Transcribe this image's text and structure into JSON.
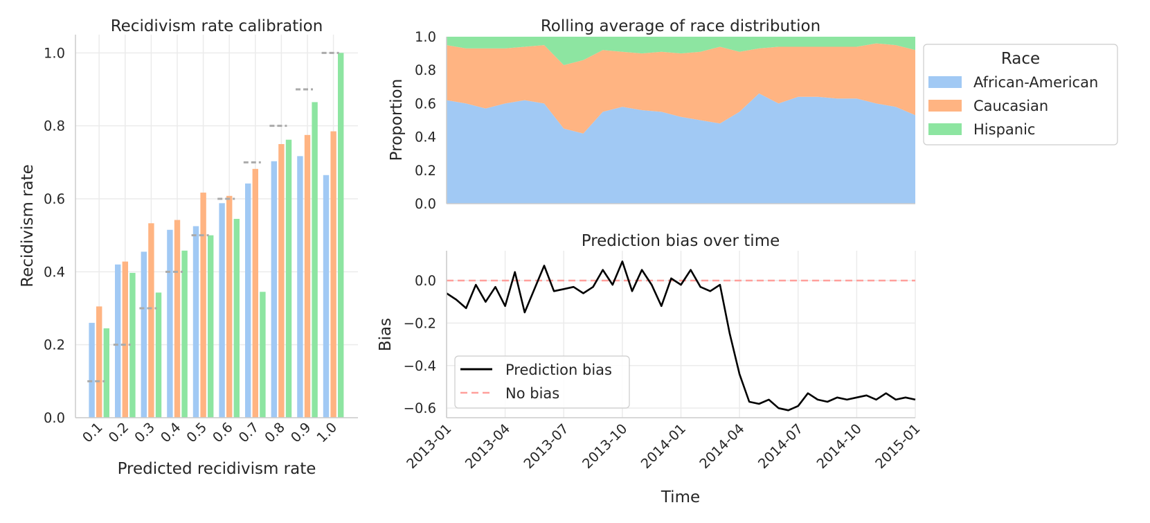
{
  "colors": {
    "african_american": "#a1c9f4",
    "caucasian": "#ffb482",
    "hispanic": "#8de5a1",
    "bias_line": "#000000",
    "no_bias_line": "#ff9f9b",
    "ideal_dash": "#aaaaaa",
    "grid": "#ebebeb",
    "axis": "#cccccc"
  },
  "chart_data": [
    {
      "type": "bar",
      "title": "Recidivism rate calibration",
      "xlabel": "Predicted recidivism rate",
      "ylabel": "Recidivism rate",
      "ylim": [
        0,
        1.05
      ],
      "yticks": [
        0.0,
        0.2,
        0.4,
        0.6,
        0.8,
        1.0
      ],
      "ytick_labels": [
        "0.0",
        "0.2",
        "0.4",
        "0.6",
        "0.8",
        "1.0"
      ],
      "categories": [
        "0.1",
        "0.2",
        "0.3",
        "0.4",
        "0.5",
        "0.6",
        "0.7",
        "0.8",
        "0.9",
        "1.0"
      ],
      "series": [
        {
          "name": "African-American",
          "values": [
            0.26,
            0.42,
            0.455,
            0.515,
            0.525,
            0.588,
            0.642,
            0.703,
            0.717,
            0.665
          ]
        },
        {
          "name": "Caucasian",
          "values": [
            0.305,
            0.428,
            0.533,
            0.542,
            0.617,
            0.608,
            0.682,
            0.75,
            0.775,
            0.785
          ]
        },
        {
          "name": "Hispanic",
          "values": [
            0.245,
            0.397,
            0.343,
            0.458,
            0.5,
            0.545,
            0.345,
            0.762,
            0.865,
            1.0
          ]
        }
      ],
      "ideal_values": [
        0.1,
        0.2,
        0.3,
        0.4,
        0.5,
        0.6,
        0.7,
        0.8,
        0.9,
        1.0
      ]
    },
    {
      "type": "area",
      "title": "Rolling average of race distribution",
      "ylabel": "Proportion",
      "ylim": [
        0,
        1.0
      ],
      "yticks": [
        0.0,
        0.2,
        0.4,
        0.6,
        0.8,
        1.0
      ],
      "ytick_labels": [
        "0.0",
        "0.2",
        "0.4",
        "0.6",
        "0.8",
        "1.0"
      ],
      "x_range": [
        "2013-01",
        "2015-01"
      ],
      "x_months": [
        0,
        1,
        2,
        3,
        4,
        5,
        6,
        7,
        8,
        9,
        10,
        11,
        12,
        13,
        14,
        15,
        16,
        17,
        18,
        19,
        20,
        21,
        22,
        23,
        24
      ],
      "series": [
        {
          "name": "African-American",
          "values": [
            0.62,
            0.6,
            0.57,
            0.6,
            0.62,
            0.6,
            0.45,
            0.42,
            0.55,
            0.58,
            0.56,
            0.55,
            0.52,
            0.5,
            0.48,
            0.55,
            0.66,
            0.6,
            0.64,
            0.64,
            0.63,
            0.63,
            0.6,
            0.58,
            0.53
          ]
        },
        {
          "name": "Caucasian",
          "values": [
            0.33,
            0.33,
            0.36,
            0.33,
            0.32,
            0.35,
            0.38,
            0.44,
            0.37,
            0.33,
            0.34,
            0.36,
            0.38,
            0.41,
            0.46,
            0.36,
            0.27,
            0.34,
            0.3,
            0.3,
            0.31,
            0.31,
            0.36,
            0.37,
            0.39
          ]
        },
        {
          "name": "Hispanic",
          "values": [
            0.05,
            0.07,
            0.07,
            0.07,
            0.06,
            0.05,
            0.17,
            0.14,
            0.08,
            0.09,
            0.1,
            0.09,
            0.1,
            0.09,
            0.06,
            0.09,
            0.07,
            0.06,
            0.06,
            0.06,
            0.06,
            0.06,
            0.04,
            0.05,
            0.08
          ]
        }
      ],
      "legend": {
        "title": "Race",
        "entries": [
          "African-American",
          "Caucasian",
          "Hispanic"
        ],
        "position": "outside-right"
      }
    },
    {
      "type": "line",
      "title": "Prediction bias over time",
      "xlabel": "Time",
      "ylabel": "Bias",
      "ylim": [
        -0.645,
        0.14
      ],
      "yticks": [
        0.0,
        -0.2,
        -0.4,
        -0.6
      ],
      "ytick_labels": [
        "0.0",
        "−0.2",
        "−0.4",
        "−0.6"
      ],
      "x_range_months": [
        0,
        24
      ],
      "xticks_months": [
        0,
        3,
        6,
        9,
        12,
        15,
        18,
        21,
        24
      ],
      "xtick_labels": [
        "2013-01",
        "2013-04",
        "2013-07",
        "2013-10",
        "2014-01",
        "2014-04",
        "2014-07",
        "2014-10",
        "2015-01"
      ],
      "series": [
        {
          "name": "Prediction bias",
          "x": [
            0,
            0.5,
            1,
            1.5,
            2,
            2.5,
            3,
            3.5,
            4,
            4.5,
            5,
            5.5,
            6,
            6.5,
            7,
            7.5,
            8,
            8.5,
            9,
            9.5,
            10,
            10.5,
            11,
            11.5,
            12,
            12.5,
            13,
            13.5,
            14,
            14.5,
            15,
            15.5,
            16,
            16.5,
            17,
            17.5,
            18,
            18.5,
            19,
            19.5,
            20,
            20.5,
            21,
            21.5,
            22,
            22.5,
            23,
            23.5,
            24
          ],
          "values": [
            -0.06,
            -0.09,
            -0.13,
            -0.02,
            -0.1,
            -0.03,
            -0.12,
            0.04,
            -0.15,
            -0.04,
            0.07,
            -0.05,
            -0.04,
            -0.03,
            -0.06,
            -0.03,
            0.05,
            -0.02,
            0.09,
            -0.05,
            0.05,
            -0.02,
            -0.12,
            0.01,
            -0.02,
            0.05,
            -0.03,
            -0.05,
            -0.02,
            -0.25,
            -0.44,
            -0.57,
            -0.58,
            -0.56,
            -0.6,
            -0.61,
            -0.59,
            -0.53,
            -0.56,
            -0.57,
            -0.55,
            -0.56,
            -0.55,
            -0.54,
            -0.56,
            -0.53,
            -0.56,
            -0.55,
            -0.56
          ]
        },
        {
          "name": "No bias",
          "value": 0.0
        }
      ],
      "legend": {
        "entries": [
          "Prediction bias",
          "No bias"
        ],
        "position": "lower-left"
      }
    }
  ]
}
